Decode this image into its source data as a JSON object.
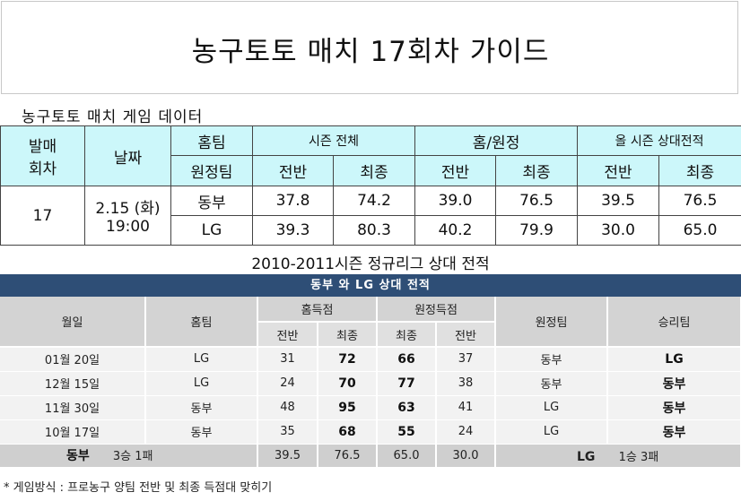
{
  "title": "농구토토 매치 17회차 가이드",
  "section1": {
    "title": "농구토토 매치 게임 데이터",
    "headers": {
      "round": "발매\n회차",
      "date": "날짜",
      "home": "홈팀",
      "away": "원정팀",
      "season": "시즌 전체",
      "homeaway": "홈/원정",
      "h2h": "올 시즌 상대전적",
      "first_half": "전반",
      "final": "최종"
    },
    "row": {
      "round": "17",
      "date": "2.15 (화)",
      "time": "19:00",
      "teams": [
        {
          "name": "동부",
          "season_half": "37.8",
          "season_final": "74.2",
          "ha_half": "39.0",
          "ha_final": "76.5",
          "h2h_half": "39.5",
          "h2h_final": "76.5"
        },
        {
          "name": "LG",
          "season_half": "39.3",
          "season_final": "80.3",
          "ha_half": "40.2",
          "ha_final": "79.9",
          "h2h_half": "30.0",
          "h2h_final": "65.0"
        }
      ]
    }
  },
  "section2": {
    "title": "2010-2011시즌 정규리그 상대 전적",
    "bar": "동부 와 LG 상대 전적",
    "headers": {
      "date": "월일",
      "home": "홈팀",
      "home_score": "홈득점",
      "away_score": "원정득점",
      "away": "원정팀",
      "winner": "승리팀",
      "half": "전반",
      "final": "최종"
    },
    "games": [
      {
        "date": "01월 20일",
        "home": "LG",
        "h_half": "31",
        "h_final": "72",
        "a_final": "66",
        "a_half": "37",
        "away": "동부",
        "winner": "LG"
      },
      {
        "date": "12월 15일",
        "home": "LG",
        "h_half": "24",
        "h_final": "70",
        "a_final": "77",
        "a_half": "38",
        "away": "동부",
        "winner": "동부"
      },
      {
        "date": "11월 30일",
        "home": "동부",
        "h_half": "48",
        "h_final": "95",
        "a_final": "63",
        "a_half": "41",
        "away": "LG",
        "winner": "동부"
      },
      {
        "date": "10월 17일",
        "home": "동부",
        "h_half": "35",
        "h_final": "68",
        "a_final": "55",
        "a_half": "24",
        "away": "LG",
        "winner": "동부"
      }
    ],
    "summary": {
      "team1": "동부",
      "team1_record": "3승 1패",
      "v1": "39.5",
      "v2": "76.5",
      "v3": "65.0",
      "v4": "30.0",
      "team2": "LG",
      "team2_record": "1승 3패"
    }
  },
  "footnote": "* 게임방식 : 프로농구 양팀 전반 및 최종 득점대 맞히기",
  "colors": {
    "header_cyan": "#ccf7fa",
    "bar_navy": "#2e4e76",
    "gray_header": "#d3d3d3"
  }
}
